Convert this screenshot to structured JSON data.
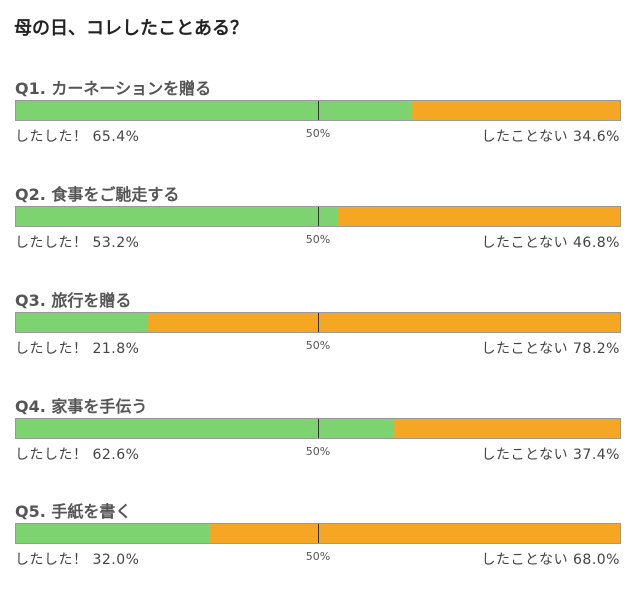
{
  "title": "母の日、コレしたことある？",
  "midpoint_label": "50%",
  "colors": {
    "did": "#7dd36f",
    "did_not": "#f5a623"
  },
  "did_prefix": "したした！",
  "did_not_prefix": "したことない",
  "chart_data": {
    "type": "bar",
    "orientation": "horizontal",
    "stacked": true,
    "title": "母の日、コレしたことある？",
    "categories": [
      "Q1. カーネーションを贈る",
      "Q2. 食事をご馳走する",
      "Q3. 旅行を贈る",
      "Q4. 家事を手伝う",
      "Q5. 手紙を書く"
    ],
    "series": [
      {
        "name": "したした！",
        "values": [
          65.4,
          53.2,
          21.8,
          62.6,
          32.0
        ]
      },
      {
        "name": "したことない",
        "values": [
          34.6,
          46.8,
          78.2,
          37.4,
          68.0
        ]
      }
    ],
    "xlim": [
      0,
      100
    ],
    "reference_line": 50
  },
  "questions": [
    {
      "title": "Q1. カーネーションを贈る",
      "did_label": "したした！ 65.4%",
      "did_not_label": "したことない 34.6%"
    },
    {
      "title": "Q2. 食事をご馳走する",
      "did_label": "したした！ 53.2%",
      "did_not_label": "したことない 46.8%"
    },
    {
      "title": "Q3. 旅行を贈る",
      "did_label": "したした！ 21.8%",
      "did_not_label": "したことない 78.2%"
    },
    {
      "title": "Q4. 家事を手伝う",
      "did_label": "したした！ 62.6%",
      "did_not_label": "したことない 37.4%"
    },
    {
      "title": "Q5. 手紙を書く",
      "did_label": "したした！ 32.0%",
      "did_not_label": "したことない 68.0%"
    }
  ]
}
